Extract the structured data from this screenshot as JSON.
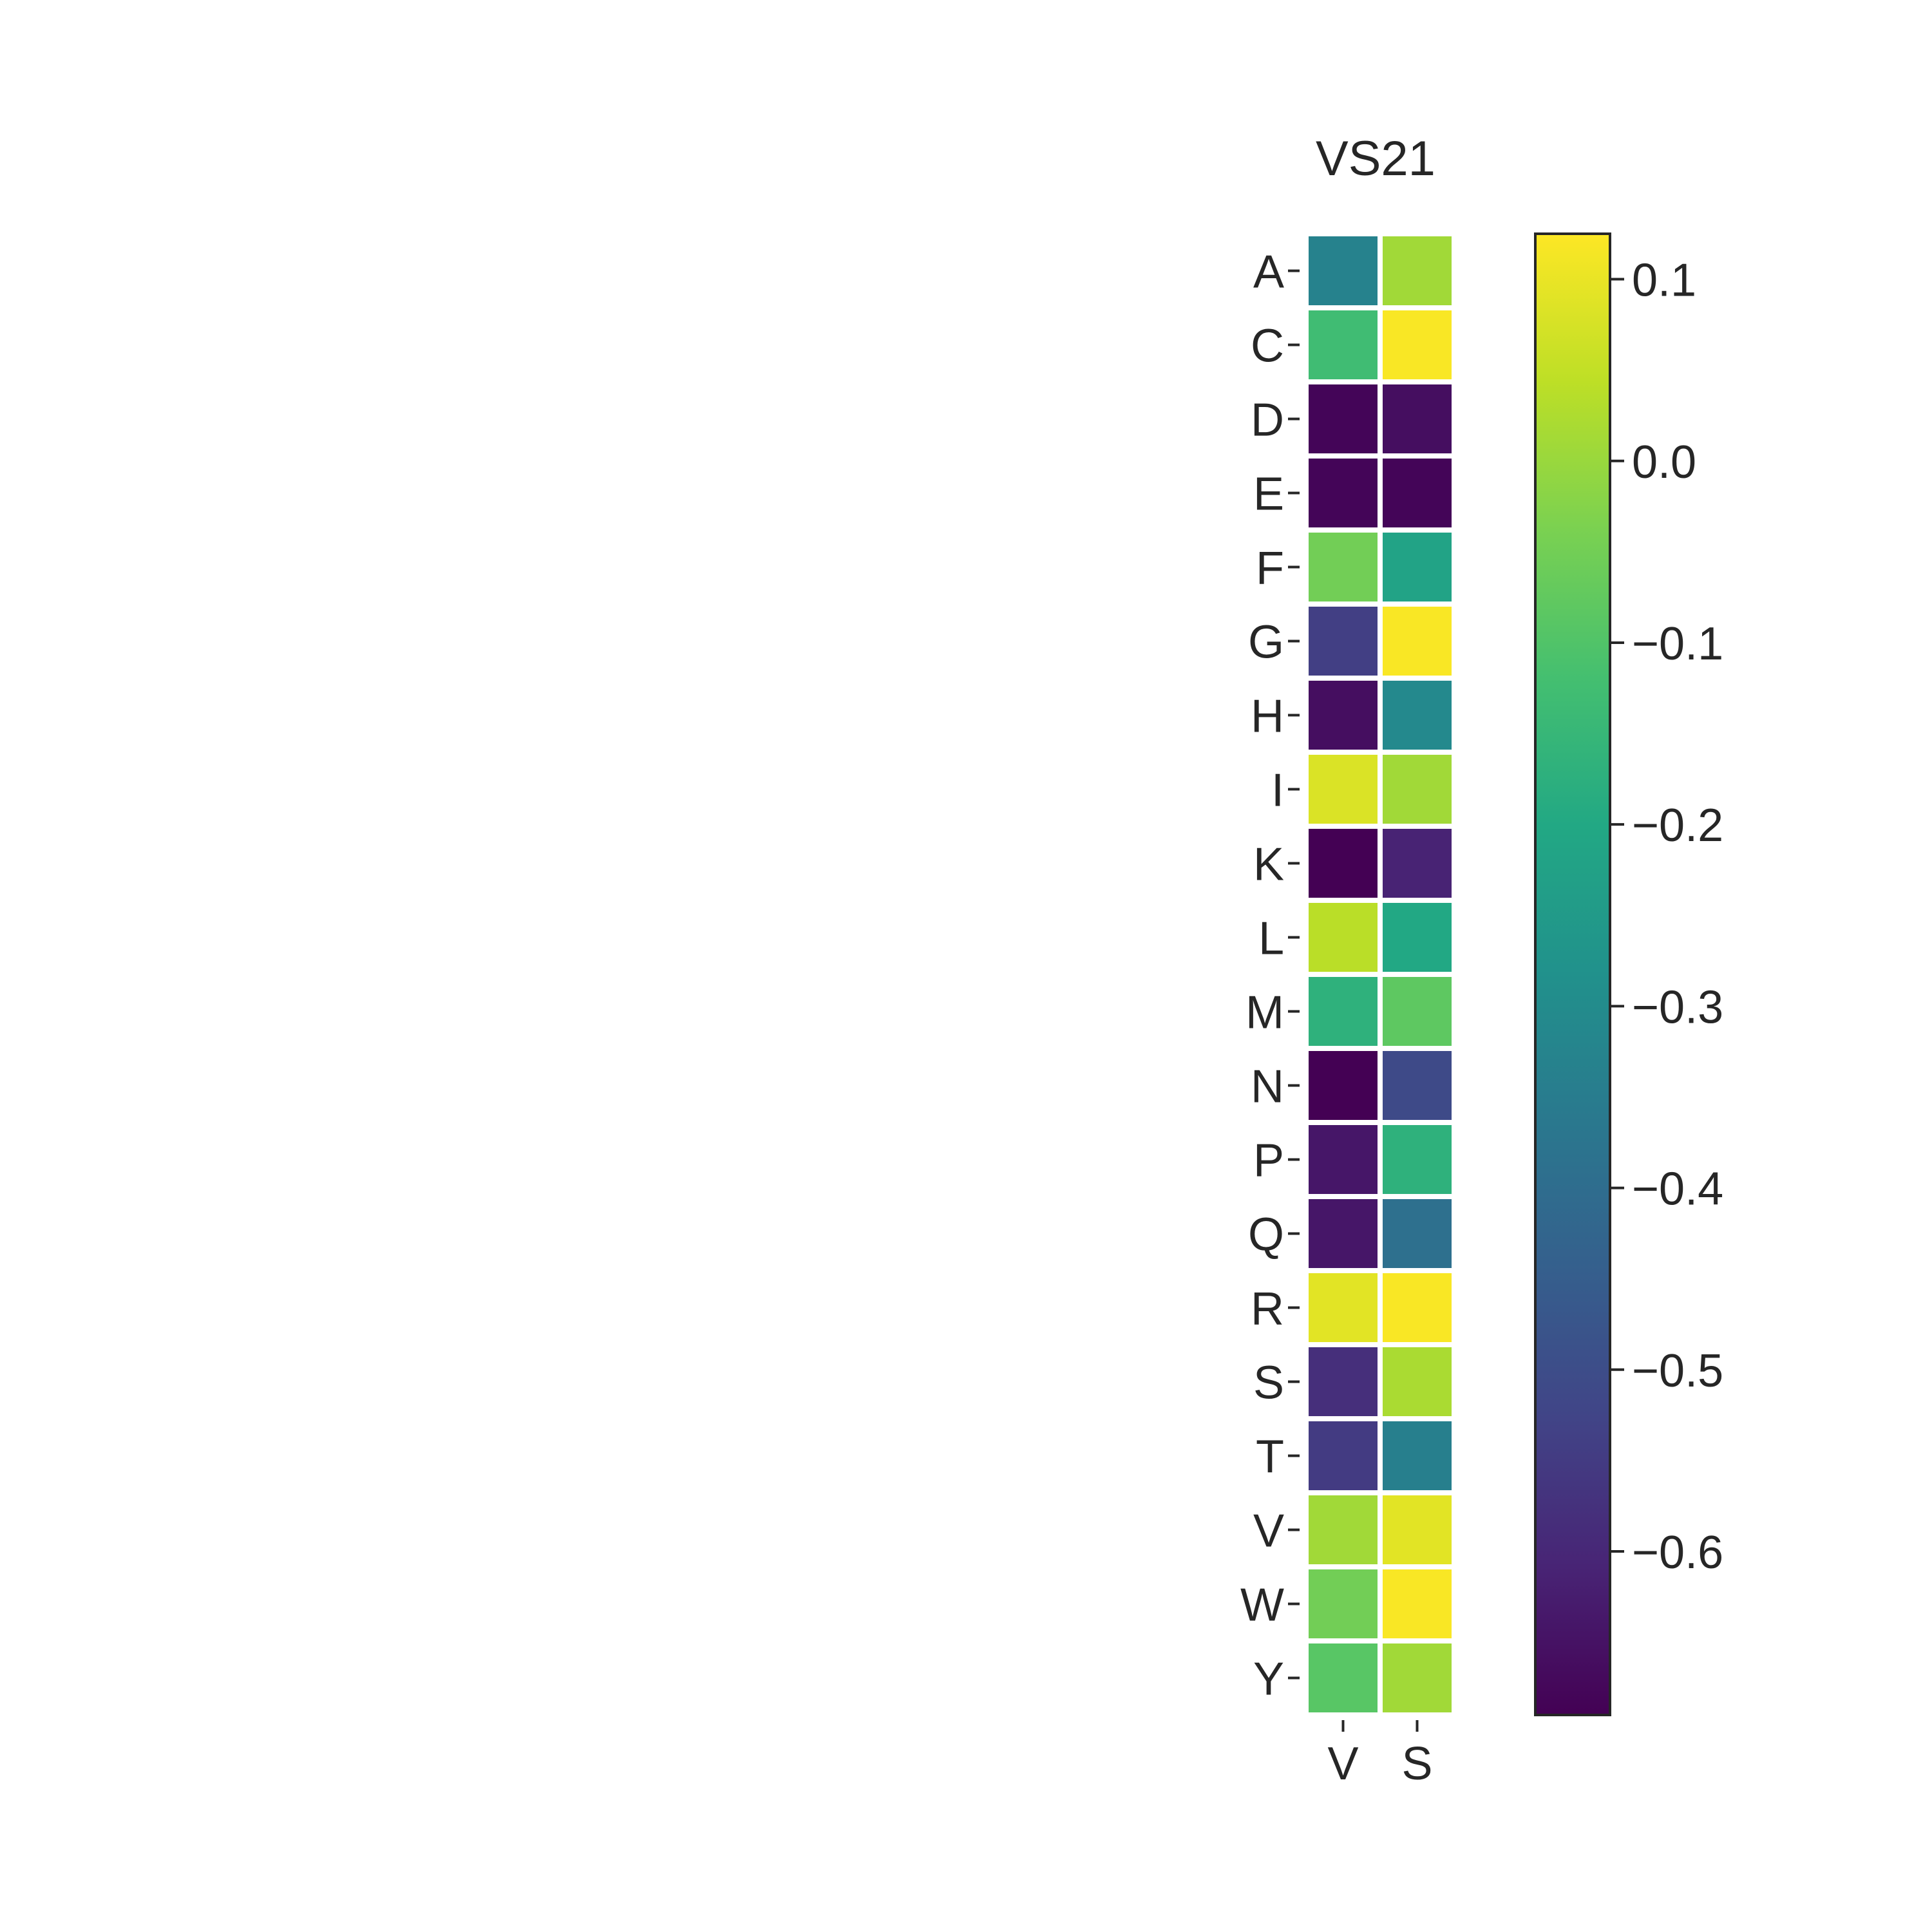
{
  "chart_data": {
    "type": "heatmap",
    "title": "VS21",
    "xlabel": "",
    "ylabel": "",
    "x_categories": [
      "V",
      "S"
    ],
    "y_categories": [
      "A",
      "C",
      "D",
      "E",
      "F",
      "G",
      "H",
      "I",
      "K",
      "L",
      "M",
      "N",
      "P",
      "Q",
      "R",
      "S",
      "T",
      "V",
      "W",
      "Y"
    ],
    "values": [
      [
        -0.33,
        0.01
      ],
      [
        -0.13,
        0.12
      ],
      [
        -0.68,
        -0.66
      ],
      [
        -0.68,
        -0.68
      ],
      [
        -0.05,
        -0.22
      ],
      [
        -0.54,
        0.12
      ],
      [
        -0.66,
        -0.31
      ],
      [
        0.08,
        0.01
      ],
      [
        -0.69,
        -0.61
      ],
      [
        0.04,
        -0.2
      ],
      [
        -0.17,
        -0.08
      ],
      [
        -0.69,
        -0.51
      ],
      [
        -0.64,
        -0.17
      ],
      [
        -0.64,
        -0.39
      ],
      [
        0.09,
        0.12
      ],
      [
        -0.58,
        0.02
      ],
      [
        -0.55,
        -0.34
      ],
      [
        0.01,
        0.09
      ],
      [
        -0.05,
        0.12
      ],
      [
        -0.09,
        0.01
      ]
    ],
    "colormap": "viridis",
    "vmin": -0.69,
    "vmax": 0.125,
    "colorbar": {
      "ticks": [
        0.1,
        0.0,
        -0.1,
        -0.2,
        -0.3,
        -0.4,
        -0.5,
        -0.6
      ],
      "tick_labels": [
        "0.1",
        "0.0",
        "−0.1",
        "−0.2",
        "−0.3",
        "−0.4",
        "−0.5",
        "−0.6"
      ]
    },
    "grid": false,
    "cell_border_color": "#ffffff"
  }
}
